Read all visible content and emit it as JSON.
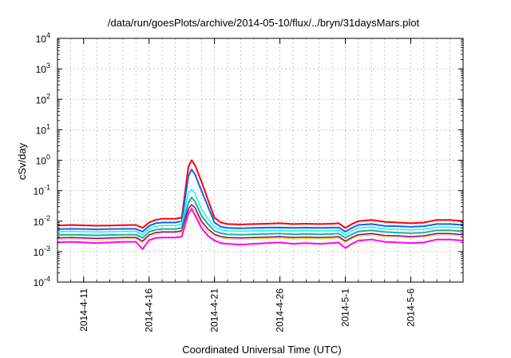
{
  "chart_data": {
    "type": "line",
    "title": "/data/run/goesPlots/archive/2014-05-10/flux/../bryn/31daysMars.plot",
    "xlabel": "Coordinated Universal Time (UTC)",
    "ylabel": "cSv/day",
    "y_scale": "log",
    "ylim": [
      0.0001,
      10000
    ],
    "xlim": [
      "2014-04-09T00:00",
      "2014-05-10T00:00"
    ],
    "grid": true,
    "legend": "none",
    "y_ticks": [
      {
        "value": 0.0001,
        "base": "10",
        "exp": "-4"
      },
      {
        "value": 0.001,
        "base": "10",
        "exp": "-3"
      },
      {
        "value": 0.01,
        "base": "10",
        "exp": "-2"
      },
      {
        "value": 0.1,
        "base": "10",
        "exp": "-1"
      },
      {
        "value": 1,
        "base": "10",
        "exp": "0"
      },
      {
        "value": 10,
        "base": "10",
        "exp": "1"
      },
      {
        "value": 100,
        "base": "10",
        "exp": "2"
      },
      {
        "value": 1000,
        "base": "10",
        "exp": "3"
      },
      {
        "value": 10000,
        "base": "10",
        "exp": "4"
      }
    ],
    "x_ticks": [
      {
        "date": "2014-04-11",
        "label": "2014-4-11"
      },
      {
        "date": "2014-04-16",
        "label": "2014-4-16"
      },
      {
        "date": "2014-04-21",
        "label": "2014-4-21"
      },
      {
        "date": "2014-04-26",
        "label": "2014-4-26"
      },
      {
        "date": "2014-05-01",
        "label": "2014-5-1"
      },
      {
        "date": "2014-05-06",
        "label": "2014-5-6"
      }
    ],
    "x": [
      "2014-04-09T00:00",
      "2014-04-10T00:00",
      "2014-04-11T00:00",
      "2014-04-12T00:00",
      "2014-04-13T00:00",
      "2014-04-14T00:00",
      "2014-04-15T00:00",
      "2014-04-15T12:00",
      "2014-04-16T00:00",
      "2014-04-16T12:00",
      "2014-04-17T00:00",
      "2014-04-18T00:00",
      "2014-04-18T12:00",
      "2014-04-19T00:00",
      "2014-04-19T06:00",
      "2014-04-19T12:00",
      "2014-04-20T00:00",
      "2014-04-20T12:00",
      "2014-04-21T00:00",
      "2014-04-21T12:00",
      "2014-04-22T00:00",
      "2014-04-23T00:00",
      "2014-04-24T00:00",
      "2014-04-25T00:00",
      "2014-04-26T00:00",
      "2014-04-27T00:00",
      "2014-04-28T00:00",
      "2014-04-29T00:00",
      "2014-04-30T00:00",
      "2014-04-30T12:00",
      "2014-05-01T00:00",
      "2014-05-01T12:00",
      "2014-05-02T00:00",
      "2014-05-03T00:00",
      "2014-05-04T00:00",
      "2014-05-05T00:00",
      "2014-05-06T00:00",
      "2014-05-07T00:00",
      "2014-05-08T00:00",
      "2014-05-09T00:00",
      "2014-05-10T00:00"
    ],
    "series": [
      {
        "color": "#ff0000",
        "width": 2,
        "values": [
          0.0072,
          0.0075,
          0.0073,
          0.0071,
          0.0072,
          0.0074,
          0.0075,
          0.006,
          0.009,
          0.011,
          0.012,
          0.012,
          0.013,
          0.6,
          1.0,
          0.7,
          0.2,
          0.05,
          0.013,
          0.009,
          0.008,
          0.0078,
          0.008,
          0.0082,
          0.0085,
          0.008,
          0.0082,
          0.008,
          0.0082,
          0.0085,
          0.006,
          0.008,
          0.01,
          0.011,
          0.0095,
          0.009,
          0.0085,
          0.009,
          0.011,
          0.011,
          0.01
        ]
      },
      {
        "color": "#1560f0",
        "width": 2,
        "values": [
          0.0055,
          0.0056,
          0.0055,
          0.0054,
          0.0055,
          0.0056,
          0.0056,
          0.0045,
          0.007,
          0.0085,
          0.009,
          0.009,
          0.01,
          0.3,
          0.5,
          0.35,
          0.1,
          0.03,
          0.009,
          0.0065,
          0.006,
          0.0058,
          0.006,
          0.0061,
          0.0062,
          0.006,
          0.0061,
          0.006,
          0.0061,
          0.0062,
          0.0045,
          0.006,
          0.0075,
          0.008,
          0.007,
          0.0068,
          0.0065,
          0.0068,
          0.008,
          0.008,
          0.0075
        ]
      },
      {
        "color": "#00ffff",
        "width": 1.5,
        "values": [
          0.0045,
          0.0046,
          0.0045,
          0.0044,
          0.0045,
          0.0046,
          0.0046,
          0.0036,
          0.0055,
          0.0068,
          0.0072,
          0.0072,
          0.008,
          0.08,
          0.11,
          0.08,
          0.025,
          0.012,
          0.0065,
          0.0052,
          0.0048,
          0.0047,
          0.0048,
          0.0049,
          0.005,
          0.0048,
          0.0049,
          0.0048,
          0.0049,
          0.005,
          0.0036,
          0.0048,
          0.006,
          0.0064,
          0.0056,
          0.0054,
          0.0052,
          0.0054,
          0.0064,
          0.0064,
          0.006
        ]
      },
      {
        "color": "#20b090",
        "width": 2,
        "values": [
          0.0035,
          0.0036,
          0.0035,
          0.0034,
          0.0035,
          0.0036,
          0.0036,
          0.0028,
          0.0044,
          0.0052,
          0.0055,
          0.0055,
          0.006,
          0.04,
          0.06,
          0.045,
          0.015,
          0.008,
          0.0048,
          0.004,
          0.0037,
          0.0036,
          0.0037,
          0.0038,
          0.0039,
          0.0037,
          0.0038,
          0.0037,
          0.0038,
          0.0039,
          0.0028,
          0.0037,
          0.0046,
          0.005,
          0.0044,
          0.0042,
          0.004,
          0.0042,
          0.005,
          0.005,
          0.0046
        ]
      },
      {
        "color": "#800080",
        "width": 1.5,
        "values": [
          0.0028,
          0.0029,
          0.0028,
          0.0027,
          0.0028,
          0.0029,
          0.0029,
          0.0022,
          0.0035,
          0.0042,
          0.0044,
          0.0044,
          0.0048,
          0.025,
          0.035,
          0.028,
          0.01,
          0.0055,
          0.0037,
          0.0031,
          0.0029,
          0.0028,
          0.0029,
          0.003,
          0.0031,
          0.0029,
          0.003,
          0.0029,
          0.003,
          0.0031,
          0.0022,
          0.0029,
          0.0036,
          0.0039,
          0.0034,
          0.0033,
          0.0031,
          0.0033,
          0.0039,
          0.0039,
          0.0036
        ]
      },
      {
        "color": "#ffd000",
        "width": 1,
        "values": [
          0.0025,
          0.0026,
          0.0025,
          0.0024,
          0.0025,
          0.0026,
          0.0026,
          0.0019,
          0.0031,
          0.0037,
          0.0039,
          0.0039,
          0.0042,
          0.02,
          0.028,
          0.022,
          0.008,
          0.0045,
          0.0033,
          0.0028,
          0.0026,
          0.0025,
          0.0026,
          0.0027,
          0.0028,
          0.0026,
          0.0027,
          0.0026,
          0.0027,
          0.0028,
          0.0019,
          0.0026,
          0.0032,
          0.0035,
          0.003,
          0.0029,
          0.0028,
          0.0029,
          0.0035,
          0.0035,
          0.0032
        ]
      },
      {
        "color": "#ff00ff",
        "width": 2,
        "values": [
          0.002,
          0.0021,
          0.002,
          0.0019,
          0.002,
          0.0021,
          0.0021,
          0.0012,
          0.0024,
          0.0028,
          0.0029,
          0.0029,
          0.0031,
          0.018,
          0.025,
          0.016,
          0.006,
          0.0033,
          0.0023,
          0.0019,
          0.0018,
          0.0017,
          0.0018,
          0.0019,
          0.002,
          0.0018,
          0.0019,
          0.0018,
          0.0019,
          0.002,
          0.0013,
          0.0018,
          0.0023,
          0.0025,
          0.0021,
          0.002,
          0.0019,
          0.002,
          0.0025,
          0.0025,
          0.0023
        ]
      }
    ]
  }
}
